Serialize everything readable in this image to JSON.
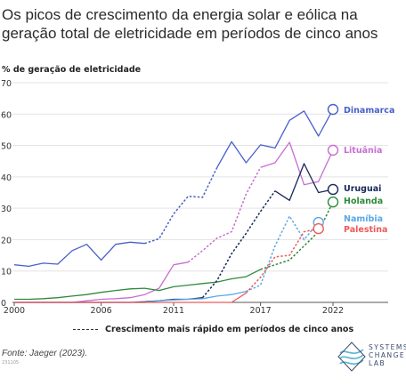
{
  "title": "Os picos de crescimento da energia solar e eólica na geração total de eletricidade em períodos de cinco anos",
  "legend_note": "Crescimento mais rápido em períodos de cinco anos",
  "source": "Fonte: Jaeger (2023).",
  "code": "231105",
  "logo": {
    "text": "SYSTEMS CHANGE LAB",
    "line1": "SYSTEMS",
    "line2": "CHANGE",
    "line3": "LAB"
  },
  "chart_data": {
    "type": "line",
    "ylabel": "% de geração de eletricidade",
    "ylim": [
      0,
      70
    ],
    "yticks": [
      0,
      10,
      20,
      30,
      40,
      50,
      60,
      70
    ],
    "xlim": [
      2000,
      2022
    ],
    "xticks": [
      2000,
      2006,
      2011,
      2017,
      2022
    ],
    "grid": "horizontal",
    "series": [
      {
        "name": "Dinamarca",
        "color": "#4860c8",
        "x": [
          2000,
          2001,
          2002,
          2003,
          2004,
          2005,
          2006,
          2007,
          2008,
          2009,
          2010,
          2011,
          2012,
          2013,
          2014,
          2015,
          2016,
          2017,
          2018,
          2019,
          2020,
          2021,
          2022
        ],
        "y": [
          12,
          11.5,
          12.5,
          12.2,
          16.5,
          18.5,
          13.5,
          18.5,
          19.2,
          18.8,
          20.3,
          28.2,
          33.8,
          33.5,
          43,
          51.2,
          44.5,
          50.2,
          49.2,
          58,
          61,
          53,
          61.5
        ],
        "endpoint": [
          2022,
          61.5
        ],
        "highlight": [
          2009,
          2014
        ]
      },
      {
        "name": "Lituânia",
        "color": "#c86ed2",
        "x": [
          2000,
          2001,
          2002,
          2003,
          2004,
          2005,
          2006,
          2007,
          2008,
          2009,
          2010,
          2011,
          2012,
          2013,
          2014,
          2015,
          2016,
          2017,
          2018,
          2019,
          2020,
          2021,
          2022
        ],
        "y": [
          0,
          0,
          0,
          0,
          0,
          0.5,
          1,
          1.2,
          1.5,
          2.5,
          4.5,
          12,
          12.8,
          16.5,
          20.5,
          22.5,
          34.5,
          43,
          44.5,
          51,
          37.5,
          38.5,
          48.5
        ],
        "endpoint": [
          2022,
          48.5
        ],
        "highlight": [
          2012,
          2017
        ]
      },
      {
        "name": "Uruguai",
        "color": "#14285a",
        "x": [
          2000,
          2001,
          2002,
          2003,
          2004,
          2005,
          2006,
          2007,
          2008,
          2009,
          2010,
          2011,
          2012,
          2013,
          2014,
          2015,
          2016,
          2017,
          2018,
          2019,
          2020,
          2021,
          2022
        ],
        "y": [
          0,
          0,
          0,
          0,
          0,
          0,
          0,
          0,
          0,
          0.2,
          0.5,
          1,
          1,
          1.5,
          7,
          15.5,
          22,
          29,
          35.5,
          32.5,
          44.2,
          35,
          36
        ],
        "endpoint": [
          2022,
          36
        ],
        "highlight": [
          2013,
          2018
        ]
      },
      {
        "name": "Holanda",
        "color": "#2e8a3a",
        "x": [
          2000,
          2001,
          2002,
          2003,
          2004,
          2005,
          2006,
          2007,
          2008,
          2009,
          2010,
          2011,
          2012,
          2013,
          2014,
          2015,
          2016,
          2017,
          2018,
          2019,
          2020,
          2021,
          2022
        ],
        "y": [
          1,
          1,
          1.2,
          1.5,
          2,
          2.5,
          3.2,
          3.8,
          4.3,
          4.5,
          3.8,
          5,
          5.5,
          6,
          6.5,
          7.5,
          8.2,
          10.5,
          12,
          13.5,
          18,
          22.5,
          32
        ],
        "endpoint": [
          2022,
          32
        ],
        "highlight": [
          2017,
          2022
        ]
      },
      {
        "name": "Namíbia",
        "color": "#5aa8e6",
        "x": [
          2000,
          2001,
          2002,
          2003,
          2004,
          2005,
          2006,
          2007,
          2008,
          2009,
          2010,
          2011,
          2012,
          2013,
          2014,
          2015,
          2016,
          2017,
          2018,
          2019,
          2020,
          2021
        ],
        "y": [
          0,
          0,
          0,
          0,
          0,
          0,
          0,
          0,
          0,
          0,
          0.5,
          0.8,
          1,
          1.2,
          2,
          2.5,
          3.5,
          5.5,
          18,
          27.5,
          20,
          25.5
        ],
        "endpoint": [
          2021,
          25.5
        ],
        "highlight": [
          2016,
          2021
        ]
      },
      {
        "name": "Palestina",
        "color": "#ee5a5a",
        "x": [
          2000,
          2001,
          2002,
          2003,
          2004,
          2005,
          2006,
          2007,
          2008,
          2009,
          2010,
          2011,
          2012,
          2013,
          2014,
          2015,
          2016,
          2017,
          2018,
          2019,
          2020,
          2021
        ],
        "y": [
          0,
          0,
          0,
          0,
          0,
          0,
          0,
          0,
          0,
          0,
          0,
          0,
          0,
          0,
          0,
          0,
          3,
          8,
          14.5,
          15,
          22.5,
          23.5
        ],
        "endpoint": [
          2021,
          23.5
        ],
        "highlight": [
          2016,
          2021
        ]
      }
    ]
  }
}
